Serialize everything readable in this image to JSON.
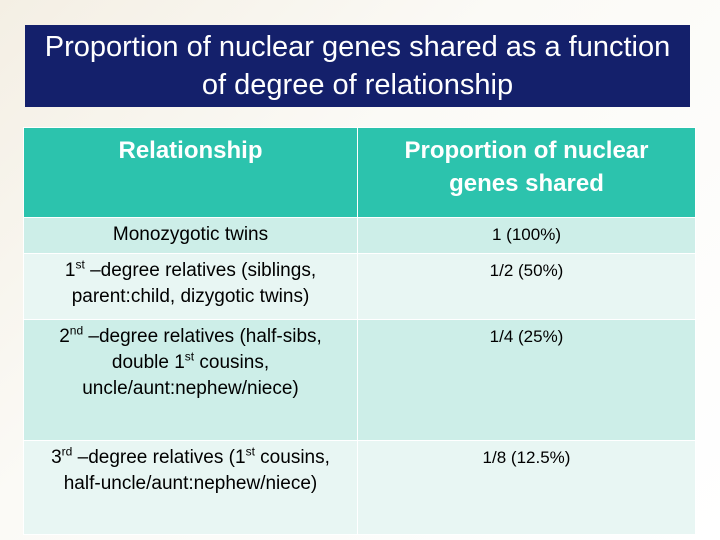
{
  "title": "Proportion of nuclear genes shared as a function of degree of relationship",
  "table": {
    "header": [
      "Relationship",
      "Proportion of nuclear genes shared"
    ],
    "rows": [
      [
        [
          "Monozygotic twins"
        ],
        "1 (100%)"
      ],
      [
        [
          "1",
          "st",
          " –degree relatives (siblings, parent:child, dizygotic twins)"
        ],
        "1/2 (50%)"
      ],
      [
        [
          "2",
          "nd",
          " –degree relatives (half-sibs, double 1",
          "st",
          " cousins, uncle/aunt:nephew/niece)"
        ],
        "1/4 (25%)"
      ],
      [
        [
          "3",
          "rd",
          " –degree relatives (1",
          "st",
          " cousins, half-uncle/aunt:nephew/niece)"
        ],
        "1/8 (12.5%)"
      ]
    ]
  }
}
